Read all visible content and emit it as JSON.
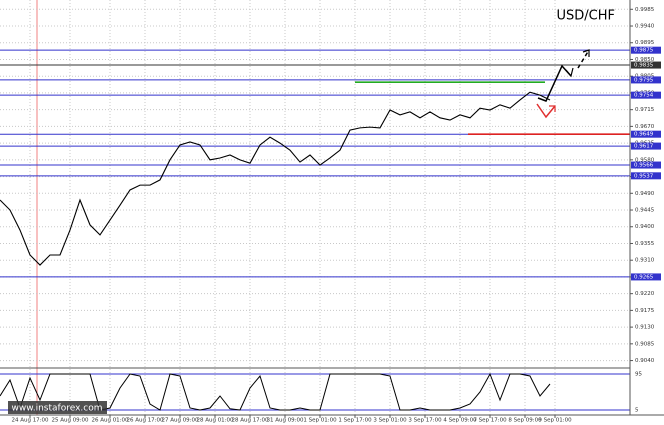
{
  "chart_data": {
    "type": "line",
    "title": "USD/CHF",
    "watermark": "www.instaforex.com",
    "series": [
      {
        "name": "USD/CHF",
        "color": "#000000",
        "values": [
          0.9472,
          0.9445,
          0.9391,
          0.9324,
          0.9297,
          0.9324,
          0.9324,
          0.9391,
          0.9472,
          0.9405,
          0.9378,
          0.9418,
          0.9458,
          0.9499,
          0.9512,
          0.9512,
          0.9526,
          0.958,
          0.962,
          0.9628,
          0.962,
          0.958,
          0.9585,
          0.9593,
          0.958,
          0.9571,
          0.962,
          0.9641,
          0.9625,
          0.9606,
          0.9574,
          0.9593,
          0.9566,
          0.9585,
          0.9606,
          0.966,
          0.9666,
          0.9668,
          0.9666,
          0.9714,
          0.9701,
          0.9709,
          0.9693,
          0.9709,
          0.9693,
          0.9687,
          0.9701,
          0.9693,
          0.9719,
          0.9714,
          0.9728,
          0.9719,
          0.9741,
          0.9762,
          0.9754,
          0.9741
        ]
      }
    ],
    "xlim": [
      0,
      63
    ],
    "ylim": [
      0.902,
      1.001
    ],
    "xticks": [
      {
        "value": 3.0,
        "label": "24 Aug 17:00"
      },
      {
        "value": 7.0,
        "label": "25 Aug 09:00"
      },
      {
        "value": 11.0,
        "label": "26 Aug 01:00"
      },
      {
        "value": 14.5,
        "label": "26 Aug 17:00"
      },
      {
        "value": 18.0,
        "label": "27 Aug 09:00"
      },
      {
        "value": 21.5,
        "label": "28 Aug 01:00"
      },
      {
        "value": 25.0,
        "label": "28 Aug 17:00"
      },
      {
        "value": 28.5,
        "label": "31 Aug 09:00"
      },
      {
        "value": 32.0,
        "label": "1 Sep 01:00"
      },
      {
        "value": 35.5,
        "label": "1 Sep 17:00"
      },
      {
        "value": 39.0,
        "label": "3 Sep 01:00"
      },
      {
        "value": 42.5,
        "label": "3 Sep 17:00"
      },
      {
        "value": 46.0,
        "label": "4 Sep 09:00"
      },
      {
        "value": 49.0,
        "label": "7 Sep 17:00"
      },
      {
        "value": 52.5,
        "label": "8 Sep 09:00"
      },
      {
        "value": 55.5,
        "label": "9 Sep 01:00"
      }
    ],
    "yticks": [
      {
        "value": 0.904,
        "label": "0.9040"
      },
      {
        "value": 0.9085,
        "label": "0.9085"
      },
      {
        "value": 0.913,
        "label": "0.9130"
      },
      {
        "value": 0.9175,
        "label": "0.9175"
      },
      {
        "value": 0.922,
        "label": "0.9220"
      },
      {
        "value": 0.9265,
        "label": "0.9265"
      },
      {
        "value": 0.931,
        "label": "0.9310"
      },
      {
        "value": 0.9355,
        "label": "0.9355"
      },
      {
        "value": 0.94,
        "label": "0.9400"
      },
      {
        "value": 0.9445,
        "label": "0.9445"
      },
      {
        "value": 0.949,
        "label": "0.9490"
      },
      {
        "value": 0.9535,
        "label": "0.9535"
      },
      {
        "value": 0.958,
        "label": "0.9580"
      },
      {
        "value": 0.9625,
        "label": "0.9625"
      },
      {
        "value": 0.967,
        "label": "0.9670"
      },
      {
        "value": 0.9715,
        "label": "0.9715"
      },
      {
        "value": 0.976,
        "label": "0.9760"
      },
      {
        "value": 0.9805,
        "label": "0.9805"
      },
      {
        "value": 0.985,
        "label": "0.9850"
      },
      {
        "value": 0.9895,
        "label": "0.9895"
      },
      {
        "value": 0.994,
        "label": "0.9940"
      },
      {
        "value": 0.9985,
        "label": "0.9985"
      }
    ],
    "grid": true,
    "levels": [
      {
        "value": 0.9875,
        "label": "0.9875",
        "color": "#3333cc"
      },
      {
        "value": 0.9835,
        "label": "0.9835",
        "color": "#333333"
      },
      {
        "value": 0.9795,
        "label": "0.9795",
        "color": "#3333cc"
      },
      {
        "value": 0.9754,
        "label": "0.9754",
        "color": "#3333cc"
      },
      {
        "value": 0.9649,
        "label": "0.9649",
        "color": "#3333cc"
      },
      {
        "value": 0.9617,
        "label": "0.9617",
        "color": "#3333cc"
      },
      {
        "value": 0.9566,
        "label": "0.9566",
        "color": "#3333cc"
      },
      {
        "value": 0.9537,
        "label": "0.9537",
        "color": "#3333cc"
      },
      {
        "value": 0.9265,
        "label": "0.9265",
        "color": "#3333cc"
      }
    ],
    "segments": [
      {
        "value": 0.9789,
        "start": 35.5,
        "end": 54.5,
        "color": "#22aa22"
      },
      {
        "value": 0.9649,
        "start": 46.8,
        "end": 63,
        "color": "#dd2222"
      }
    ],
    "oscillator": {
      "color": "#000000",
      "ylim": [
        0,
        100
      ],
      "yticks": [
        5,
        95
      ],
      "values": [
        40,
        80,
        10,
        85,
        30,
        95,
        95,
        95,
        95,
        95,
        5,
        10,
        60,
        95,
        90,
        20,
        5,
        95,
        90,
        10,
        5,
        10,
        40,
        8,
        5,
        60,
        90,
        10,
        5,
        5,
        10,
        5,
        5,
        95,
        95,
        95,
        95,
        95,
        95,
        90,
        5,
        5,
        10,
        5,
        5,
        5,
        10,
        20,
        50,
        95,
        30,
        95,
        95,
        90,
        40,
        70
      ]
    }
  }
}
